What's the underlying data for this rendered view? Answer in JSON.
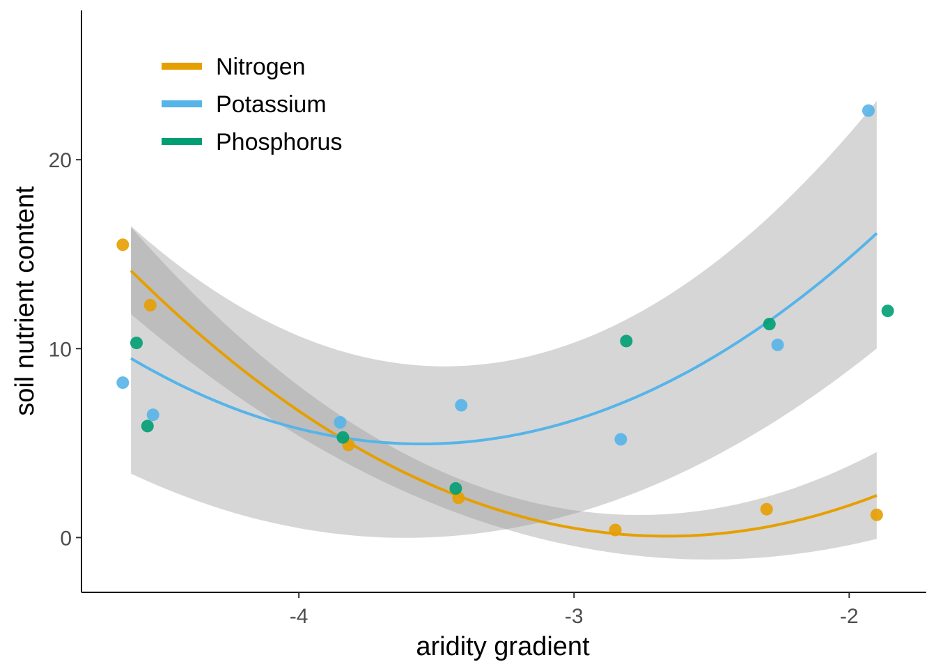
{
  "chart_data": {
    "type": "scatter",
    "title": "",
    "xlabel": "aridity gradient",
    "ylabel": "soil nutrient content",
    "xlim": [
      -4.79,
      -1.72
    ],
    "ylim": [
      -2.9,
      27.9
    ],
    "x_ticks": [
      -4,
      -3,
      -2
    ],
    "x_tick_labels": [
      "-4",
      "-3",
      "-2"
    ],
    "y_ticks": [
      0,
      10,
      20
    ],
    "y_tick_labels": [
      "0",
      "10",
      "20"
    ],
    "grid": false,
    "legend_position": "top-left",
    "series": [
      {
        "name": "Nitrogen",
        "color": "#E69F00",
        "points": [
          {
            "x": -4.64,
            "y": 15.5
          },
          {
            "x": -4.54,
            "y": 12.3
          },
          {
            "x": -3.82,
            "y": 4.9
          },
          {
            "x": -3.42,
            "y": 2.1
          },
          {
            "x": -2.85,
            "y": 0.4
          },
          {
            "x": -2.3,
            "y": 1.5
          },
          {
            "x": -1.9,
            "y": 1.2
          }
        ],
        "fit": {
          "x_range": [
            -4.61,
            -1.9
          ],
          "coef": [
            26.34,
            19.73,
            3.705
          ]
        },
        "band": {
          "lower_offset_ends": 2.3,
          "lower_offset_mid": 0.9,
          "upper_offset_ends": 2.3,
          "upper_offset_mid": 0.9
        }
      },
      {
        "name": "Potassium",
        "color": "#56B4E9",
        "points": [
          {
            "x": -4.64,
            "y": 8.2
          },
          {
            "x": -4.53,
            "y": 6.5
          },
          {
            "x": -3.85,
            "y": 6.1
          },
          {
            "x": -3.41,
            "y": 7.0
          },
          {
            "x": -2.83,
            "y": 5.2
          },
          {
            "x": -2.26,
            "y": 10.2
          },
          {
            "x": -1.93,
            "y": 22.6
          }
        ],
        "fit": {
          "x_range": [
            -4.61,
            -1.9
          ],
          "coef": [
            56.4,
            28.94,
            4.07
          ]
        },
        "band": {
          "lower_offset_ends": 6.1,
          "lower_offset_mid": 4.9,
          "upper_offset_ends": 7.0,
          "upper_offset_mid": 4.0
        }
      },
      {
        "name": "Phosphorus",
        "color": "#009E73",
        "points": [
          {
            "x": -4.59,
            "y": 10.3
          },
          {
            "x": -4.55,
            "y": 5.9
          },
          {
            "x": -3.84,
            "y": 5.3
          },
          {
            "x": -3.43,
            "y": 2.6
          },
          {
            "x": -2.81,
            "y": 10.4
          },
          {
            "x": -2.29,
            "y": 11.3
          },
          {
            "x": -1.86,
            "y": 12.0
          }
        ]
      }
    ]
  }
}
